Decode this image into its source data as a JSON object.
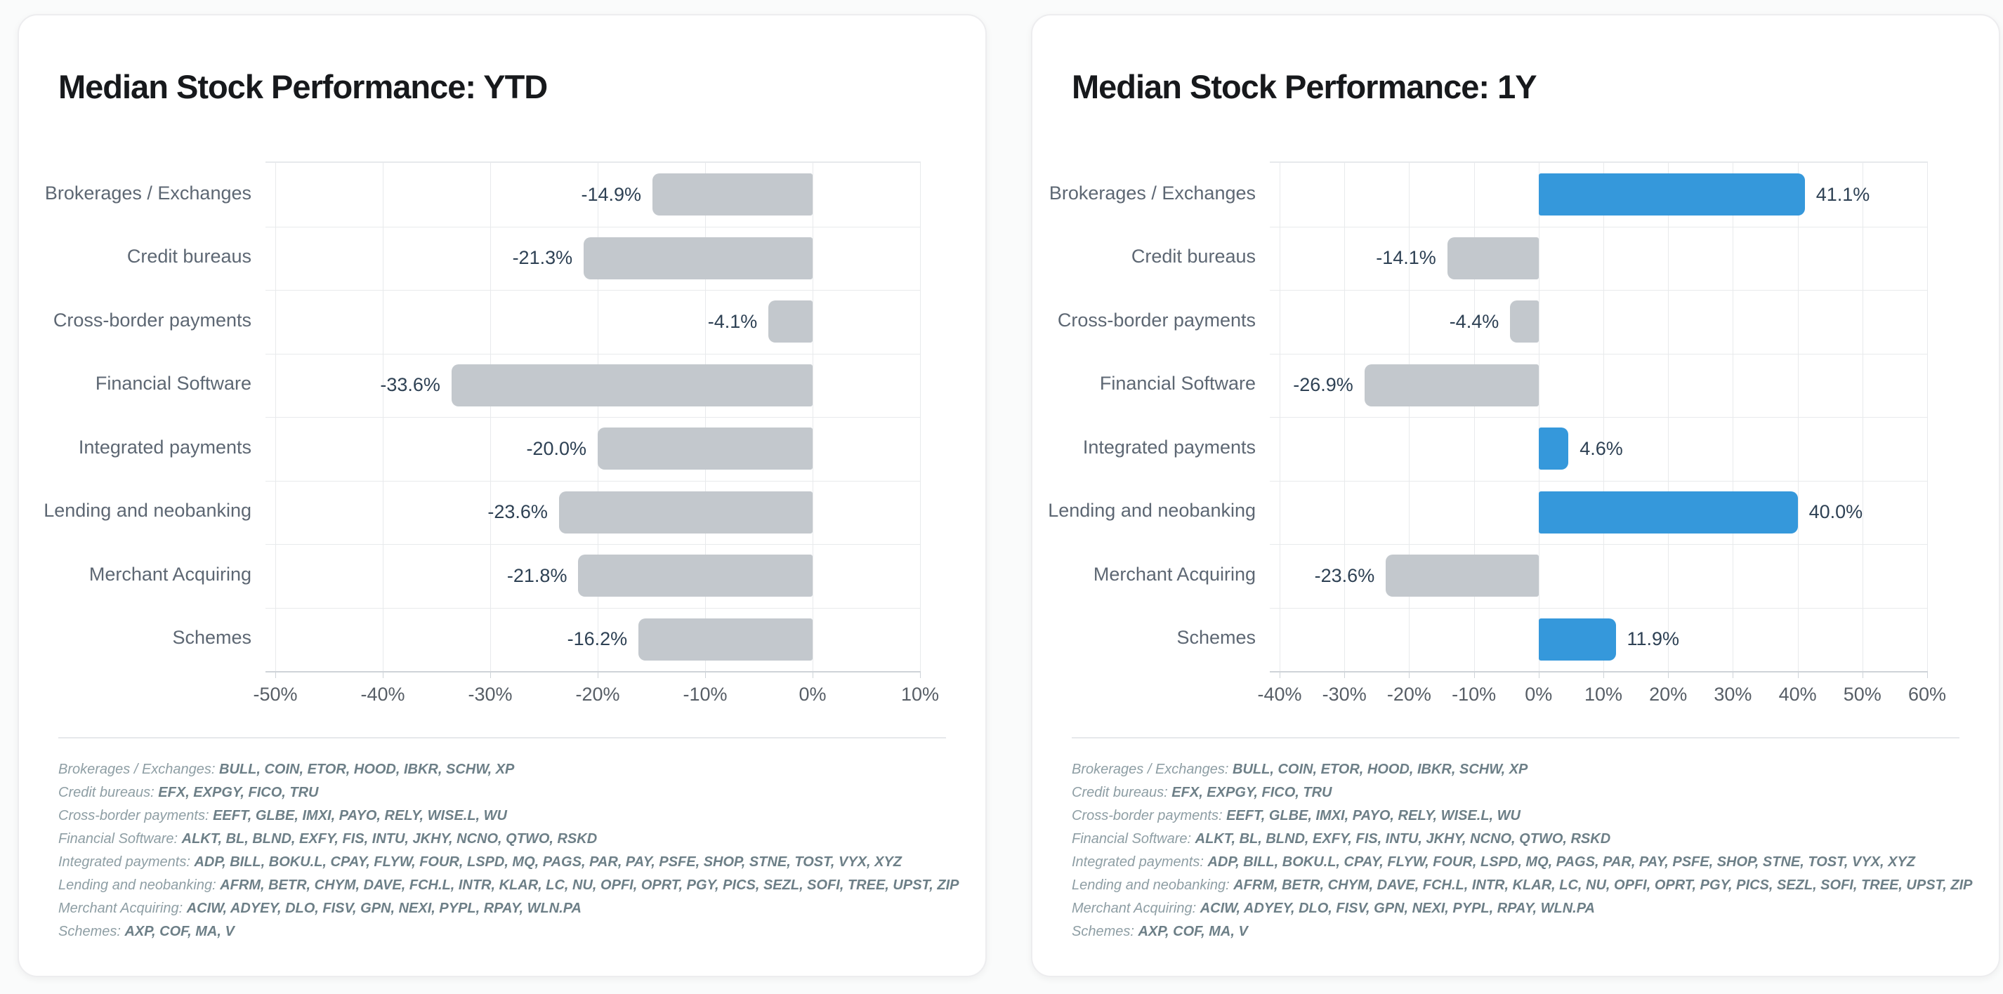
{
  "chart_data": [
    {
      "id": "ytd",
      "type": "bar",
      "orientation": "horizontal",
      "title": "Median Stock Performance: YTD",
      "categories": [
        "Brokerages / Exchanges",
        "Credit bureaus",
        "Cross-border payments",
        "Financial Software",
        "Integrated payments",
        "Lending and neobanking",
        "Merchant Acquiring",
        "Schemes"
      ],
      "values": [
        -14.9,
        -21.3,
        -4.1,
        -33.6,
        -20.0,
        -23.6,
        -21.8,
        -16.2
      ],
      "value_labels": [
        "-14.9%",
        "-21.3%",
        "-4.1%",
        "-33.6%",
        "-20.0%",
        "-23.6%",
        "-21.8%",
        "-16.2%"
      ],
      "xlim": [
        -50,
        10
      ],
      "xticks": [
        -50,
        -40,
        -30,
        -20,
        -10,
        0,
        10
      ],
      "xtick_labels": [
        "-50%",
        "-40%",
        "-30%",
        "-20%",
        "-10%",
        "0%",
        "10%"
      ],
      "grid": true,
      "legend_position": "none",
      "positive_color": "#3598db",
      "negative_color": "#c3c8cd"
    },
    {
      "id": "1y",
      "type": "bar",
      "orientation": "horizontal",
      "title": "Median Stock Performance: 1Y",
      "categories": [
        "Brokerages / Exchanges",
        "Credit bureaus",
        "Cross-border payments",
        "Financial Software",
        "Integrated payments",
        "Lending and neobanking",
        "Merchant Acquiring",
        "Schemes"
      ],
      "values": [
        41.1,
        -14.1,
        -4.4,
        -26.9,
        4.6,
        40.0,
        -23.6,
        11.9
      ],
      "value_labels": [
        "41.1%",
        "-14.1%",
        "-4.4%",
        "-26.9%",
        "4.6%",
        "40.0%",
        "-23.6%",
        "11.9%"
      ],
      "xlim": [
        -40,
        60
      ],
      "xticks": [
        -40,
        -30,
        -20,
        -10,
        0,
        10,
        20,
        30,
        40,
        50,
        60
      ],
      "xtick_labels": [
        "-40%",
        "-30%",
        "-20%",
        "-10%",
        "0%",
        "10%",
        "20%",
        "30%",
        "40%",
        "50%",
        "60%"
      ],
      "grid": true,
      "legend_position": "none",
      "positive_color": "#3598db",
      "negative_color": "#c3c8cd"
    }
  ],
  "footnotes": [
    {
      "label": "Brokerages / Exchanges:",
      "tickers": "BULL, COIN, ETOR, HOOD, IBKR, SCHW, XP"
    },
    {
      "label": "Credit bureaus:",
      "tickers": "EFX, EXPGY, FICO, TRU"
    },
    {
      "label": "Cross-border payments:",
      "tickers": "EEFT, GLBE, IMXI, PAYO, RELY, WISE.L, WU"
    },
    {
      "label": "Financial Software:",
      "tickers": "ALKT, BL, BLND, EXFY, FIS, INTU, JKHY, NCNO, QTWO, RSKD"
    },
    {
      "label": "Integrated payments:",
      "tickers": "ADP, BILL, BOKU.L, CPAY, FLYW, FOUR, LSPD, MQ, PAGS, PAR, PAY, PSFE, SHOP, STNE, TOST, VYX, XYZ"
    },
    {
      "label": "Lending and neobanking:",
      "tickers": "AFRM, BETR, CHYM, DAVE, FCH.L, INTR, KLAR, LC, NU, OPFI, OPRT, PGY, PICS, SEZL, SOFI, TREE, UPST, ZIP"
    },
    {
      "label": "Merchant Acquiring:",
      "tickers": "ACIW, ADYEY, DLO, FISV, GPN, NEXI, PYPL, RPAY, WLN.PA"
    },
    {
      "label": "Schemes:",
      "tickers": "AXP, COF, MA, V"
    }
  ]
}
